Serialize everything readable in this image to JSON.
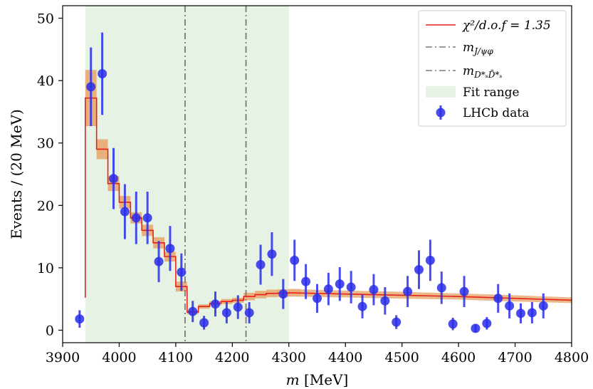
{
  "chart_data": {
    "type": "scatter",
    "xlabel": "m [MeV]",
    "ylabel": "Events / (20 MeV)",
    "xlim": [
      3900,
      4800
    ],
    "ylim": [
      -2,
      52
    ],
    "x_ticks": [
      3900,
      4000,
      4100,
      4200,
      4300,
      4400,
      4500,
      4600,
      4700,
      4800
    ],
    "x_tick_labels": [
      "3900",
      "4000",
      "4100",
      "4200",
      "4300",
      "4400",
      "4500",
      "4600",
      "4700",
      "4800"
    ],
    "y_ticks": [
      0,
      10,
      20,
      30,
      40,
      50
    ],
    "y_tick_labels": [
      "0",
      "10",
      "20",
      "30",
      "40",
      "50"
    ],
    "legend_position": "top-right",
    "fit_range": [
      3940,
      4300
    ],
    "thresholds": [
      {
        "name": "m_J/psi phi",
        "x": 4116.4
      },
      {
        "name": "m_Ds* Ds*",
        "x": 4224.2
      }
    ],
    "legend": {
      "fit_label": "χ²/d.o.f = 1.35",
      "jpsiphi_label": "m",
      "jpsiphi_sub": "J/ψφ",
      "dsds_label": "m",
      "dsds_sub": "D*ₛD̄*ₛ",
      "range_label": "Fit range",
      "data_label": "LHCb data"
    },
    "series": [
      {
        "name": "LHCb data",
        "x": [
          3930,
          3950,
          3970,
          3990,
          4010,
          4030,
          4050,
          4070,
          4090,
          4110,
          4130,
          4150,
          4170,
          4190,
          4210,
          4230,
          4250,
          4270,
          4290,
          4310,
          4330,
          4350,
          4370,
          4390,
          4410,
          4430,
          4450,
          4470,
          4490,
          4510,
          4530,
          4550,
          4570,
          4590,
          4610,
          4630,
          4650,
          4670,
          4690,
          4710,
          4730,
          4750
        ],
        "y": [
          1.8,
          39,
          41.1,
          24.3,
          19,
          18,
          18,
          11,
          13.1,
          9.3,
          3,
          1.2,
          4.2,
          2.8,
          3.7,
          2.8,
          10.5,
          12.2,
          5.8,
          11.2,
          7.8,
          5.1,
          6.6,
          7.4,
          6.9,
          3.8,
          6.5,
          4.7,
          1.3,
          6.2,
          9.7,
          11.2,
          6.8,
          1,
          6.2,
          0.3,
          1.1,
          5.1,
          3.9,
          2.7,
          2.8,
          3.9
        ],
        "err": [
          1.4,
          6.3,
          6.6,
          4.9,
          4.4,
          4.2,
          4.2,
          3.3,
          3.6,
          3.0,
          1.7,
          1.1,
          2.0,
          1.7,
          1.9,
          1.7,
          3.2,
          3.5,
          2.4,
          3.3,
          2.8,
          2.3,
          2.6,
          2.7,
          2.6,
          1.9,
          2.5,
          2.2,
          1.1,
          2.5,
          3.1,
          3.3,
          2.6,
          1.0,
          2.5,
          0.6,
          1.0,
          2.3,
          2.0,
          1.6,
          1.7,
          2.0
        ]
      },
      {
        "name": "χ²/d.o.f = 1.35",
        "bins_left": [
          3940,
          3960,
          3980,
          4000,
          4020,
          4040,
          4060,
          4080,
          4100,
          4120,
          4140,
          4160,
          4180,
          4200,
          4220,
          4240,
          4260,
          4280,
          4300
        ],
        "values": [
          37.2,
          29,
          23.5,
          20.5,
          18,
          16,
          14,
          11.8,
          7,
          2.9,
          3.8,
          4.3,
          4.6,
          4.8,
          5.4,
          5.7,
          5.9,
          5.95,
          6.0
        ],
        "band_halfwidth": [
          4.5,
          1.6,
          1.2,
          1.0,
          0.9,
          0.9,
          0.9,
          0.8,
          0.8,
          0.3,
          0.35,
          0.35,
          0.4,
          0.4,
          0.6,
          0.6,
          0.6,
          0.6,
          0.6
        ],
        "tail_x": [
          4300,
          4400,
          4500,
          4600,
          4700,
          4800
        ],
        "tail_y": [
          6.0,
          5.8,
          5.6,
          5.4,
          5.1,
          4.8
        ],
        "tail_band": [
          0.6,
          0.55,
          0.55,
          0.5,
          0.5,
          0.45
        ]
      }
    ]
  },
  "colors": {
    "fit_line": "#e8221a",
    "fit_band": "#e8b07c",
    "fit_range": "#e6f2e3",
    "threshold": "#7a7a7a",
    "data": "#2a2ee8"
  }
}
